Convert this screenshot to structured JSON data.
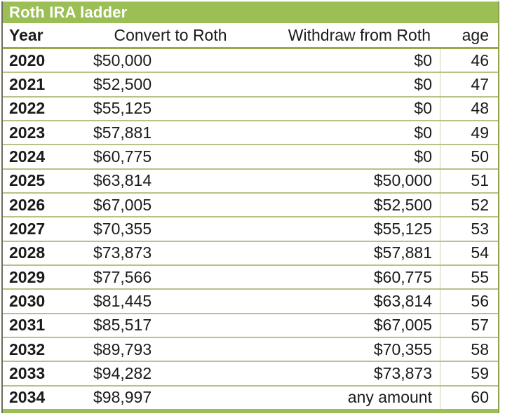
{
  "title": "Roth IRA ladder",
  "colors": {
    "accent_green": "#9bbe55",
    "row_border": "#b6c384",
    "header_border": "#97a84d",
    "text": "#1a1a1a",
    "title_text": "#ffffff"
  },
  "table": {
    "columns": [
      "Year",
      "Convert to Roth",
      "Withdraw from Roth",
      "age"
    ],
    "rows": [
      {
        "year": "2020",
        "convert": "$50,000",
        "withdraw": "$0",
        "age": "46"
      },
      {
        "year": "2021",
        "convert": "$52,500",
        "withdraw": "$0",
        "age": "47"
      },
      {
        "year": "2022",
        "convert": "$55,125",
        "withdraw": "$0",
        "age": "48"
      },
      {
        "year": "2023",
        "convert": "$57,881",
        "withdraw": "$0",
        "age": "49"
      },
      {
        "year": "2024",
        "convert": "$60,775",
        "withdraw": "$0",
        "age": "50"
      },
      {
        "year": "2025",
        "convert": "$63,814",
        "withdraw": "$50,000",
        "age": "51"
      },
      {
        "year": "2026",
        "convert": "$67,005",
        "withdraw": "$52,500",
        "age": "52"
      },
      {
        "year": "2027",
        "convert": "$70,355",
        "withdraw": "$55,125",
        "age": "53"
      },
      {
        "year": "2028",
        "convert": "$73,873",
        "withdraw": "$57,881",
        "age": "54"
      },
      {
        "year": "2029",
        "convert": "$77,566",
        "withdraw": "$60,775",
        "age": "55"
      },
      {
        "year": "2030",
        "convert": "$81,445",
        "withdraw": "$63,814",
        "age": "56"
      },
      {
        "year": "2031",
        "convert": "$85,517",
        "withdraw": "$67,005",
        "age": "57"
      },
      {
        "year": "2032",
        "convert": "$89,793",
        "withdraw": "$70,355",
        "age": "58"
      },
      {
        "year": "2033",
        "convert": "$94,282",
        "withdraw": "$73,873",
        "age": "59"
      },
      {
        "year": "2034",
        "convert": "$98,997",
        "withdraw": "any amount",
        "age": "60"
      }
    ]
  },
  "chart_data": {
    "type": "table",
    "title": "Roth IRA ladder",
    "columns": [
      "Year",
      "Convert to Roth",
      "Withdraw from Roth",
      "age"
    ],
    "rows": [
      [
        "2020",
        "$50,000",
        "$0",
        "46"
      ],
      [
        "2021",
        "$52,500",
        "$0",
        "47"
      ],
      [
        "2022",
        "$55,125",
        "$0",
        "48"
      ],
      [
        "2023",
        "$57,881",
        "$0",
        "49"
      ],
      [
        "2024",
        "$60,775",
        "$0",
        "50"
      ],
      [
        "2025",
        "$63,814",
        "$50,000",
        "51"
      ],
      [
        "2026",
        "$67,005",
        "$52,500",
        "52"
      ],
      [
        "2027",
        "$70,355",
        "$55,125",
        "53"
      ],
      [
        "2028",
        "$73,873",
        "$57,881",
        "54"
      ],
      [
        "2029",
        "$77,566",
        "$60,775",
        "55"
      ],
      [
        "2030",
        "$81,445",
        "$63,814",
        "56"
      ],
      [
        "2031",
        "$85,517",
        "$67,005",
        "57"
      ],
      [
        "2032",
        "$89,793",
        "$70,355",
        "58"
      ],
      [
        "2033",
        "$94,282",
        "$73,873",
        "59"
      ],
      [
        "2034",
        "$98,997",
        "any amount",
        "60"
      ]
    ]
  }
}
